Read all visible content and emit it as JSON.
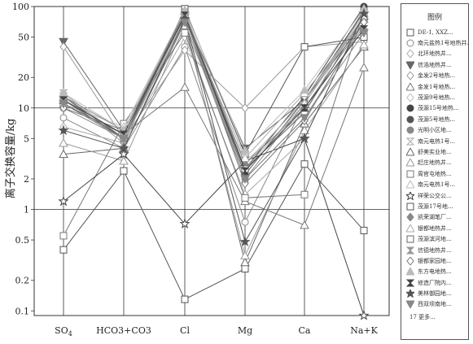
{
  "chart_data": {
    "type": "line",
    "title": "",
    "xlabel": "",
    "ylabel": "离子交换容量/kg",
    "yscale": "log",
    "ylim": [
      0.09,
      100
    ],
    "categories": [
      "SO4",
      "HCO3+CO3",
      "Cl",
      "Mg",
      "Ca",
      "Na+K"
    ],
    "yticks": [
      0.1,
      0.2,
      0.5,
      1,
      2,
      5,
      10,
      20,
      50,
      100
    ],
    "grid_lines": [
      1,
      10
    ],
    "legend_title": "图例",
    "legend_more": "17 更多...",
    "series": [
      {
        "name": "DE-1, XXZ...",
        "marker": "square",
        "values": [
          0.4,
          2.4,
          0.13,
          0.26,
          2.8,
          0.62
        ]
      },
      {
        "name": "南元盐热1号地热井...",
        "marker": "circle",
        "values": [
          8,
          4,
          40,
          0.75,
          11,
          90
        ]
      },
      {
        "name": "北环地热井...",
        "marker": "diamond",
        "values": [
          6.5,
          4.5,
          50,
          1.4,
          5,
          85
        ]
      },
      {
        "name": "信浩地热井...",
        "marker": "tri-down",
        "values": [
          45,
          6,
          80,
          4,
          12,
          70
        ]
      },
      {
        "name": "金发2号地热...",
        "marker": "diamond",
        "values": [
          40,
          5,
          37,
          10,
          40,
          45
        ]
      },
      {
        "name": "金发1号地热...",
        "marker": "tri-up",
        "values": [
          12,
          5.5,
          16,
          1.2,
          0.7,
          25
        ]
      },
      {
        "name": "茂源9号地热...",
        "marker": "diamond",
        "values": [
          14,
          5,
          60,
          3,
          9,
          95
        ]
      },
      {
        "name": "茂源15号地热...",
        "marker": "circle-filled",
        "values": [
          13,
          5,
          90,
          2.5,
          13,
          100
        ]
      },
      {
        "name": "茂源5号地热...",
        "marker": "circle-filled",
        "values": [
          11,
          5.5,
          85,
          2.2,
          12,
          90
        ]
      },
      {
        "name": "光明小区地...",
        "marker": "circle-filled",
        "values": [
          10,
          5,
          80,
          2,
          11,
          80
        ]
      },
      {
        "name": "南元电热1号...",
        "marker": "hourglass",
        "values": [
          14,
          4.8,
          75,
          2.8,
          12,
          85
        ]
      },
      {
        "name": "舒美实业地...",
        "marker": "tri-up",
        "values": [
          3.5,
          4,
          70,
          0.3,
          7,
          40
        ]
      },
      {
        "name": "赶庄地热井...",
        "marker": "tri-up",
        "values": [
          4.5,
          3,
          65,
          0.35,
          6,
          42
        ]
      },
      {
        "name": "周官屯地热...",
        "marker": "square",
        "values": [
          0.55,
          7,
          55,
          1.3,
          1.4,
          90
        ]
      },
      {
        "name": "南元电热1号...",
        "marker": "tri-up",
        "values": [
          11,
          6.5,
          90,
          2.5,
          11,
          85
        ]
      },
      {
        "name": "祥荣公交公...",
        "marker": "star",
        "values": [
          1.2,
          3.5,
          0.72,
          3,
          5,
          0.09
        ]
      },
      {
        "name": "茂源17号地...",
        "marker": "square",
        "values": [
          12,
          5,
          95,
          3.5,
          40,
          50
        ]
      },
      {
        "name": "凯荣湖笔厂...",
        "marker": "diamond-filled",
        "values": [
          13,
          6,
          85,
          2.8,
          10,
          70
        ]
      },
      {
        "name": "银都地热井...",
        "marker": "tri-up",
        "values": [
          12,
          5.5,
          80,
          3.2,
          14,
          75
        ]
      },
      {
        "name": "茂源滨河地...",
        "marker": "square",
        "values": [
          11,
          5,
          85,
          2.5,
          9,
          80
        ]
      },
      {
        "name": "信德地热井...",
        "marker": "hourglass-filled",
        "values": [
          13,
          4.5,
          88,
          2,
          8,
          65
        ]
      },
      {
        "name": "银都家园地...",
        "marker": "diamond",
        "values": [
          10,
          6,
          78,
          1.8,
          7.5,
          70
        ]
      },
      {
        "name": "东方电地热...",
        "marker": "tri-up-filled",
        "values": [
          14,
          6,
          92,
          3.8,
          15,
          95
        ]
      },
      {
        "name": "修造厂院内...",
        "marker": "hourglass-filled",
        "values": [
          12,
          5.5,
          82,
          2.4,
          10,
          60
        ]
      },
      {
        "name": "美林御园地...",
        "marker": "star-filled",
        "values": [
          6,
          4,
          75,
          0.48,
          5,
          85
        ]
      },
      {
        "name": "西双坝南地...",
        "marker": "tri-down",
        "values": [
          11,
          5,
          70,
          2,
          8,
          55
        ]
      }
    ]
  }
}
